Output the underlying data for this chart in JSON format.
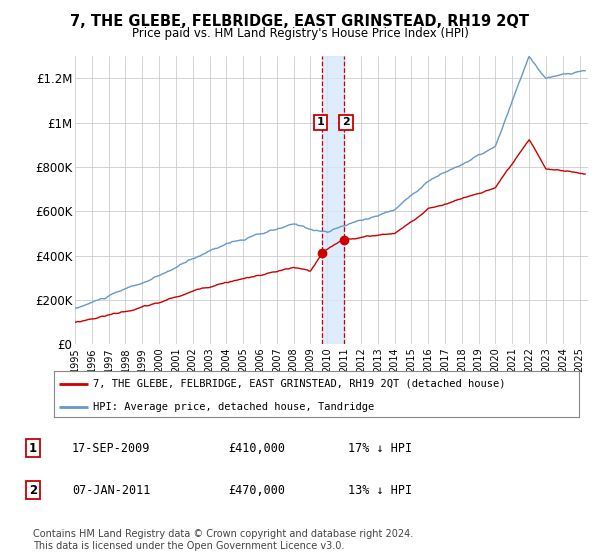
{
  "title": "7, THE GLEBE, FELBRIDGE, EAST GRINSTEAD, RH19 2QT",
  "subtitle": "Price paid vs. HM Land Registry's House Price Index (HPI)",
  "ylabel_ticks": [
    "£0",
    "£200K",
    "£400K",
    "£600K",
    "£800K",
    "£1M",
    "£1.2M"
  ],
  "ytick_values": [
    0,
    200000,
    400000,
    600000,
    800000,
    1000000,
    1200000
  ],
  "ylim": [
    0,
    1300000
  ],
  "xlim_start": 1995.0,
  "xlim_end": 2025.5,
  "transaction1": {
    "date_num": 2009.71,
    "price": 410000,
    "label": "1",
    "hpi_pct": "17% ↓ HPI",
    "date_str": "17-SEP-2009"
  },
  "transaction2": {
    "date_num": 2011.02,
    "price": 470000,
    "label": "2",
    "hpi_pct": "13% ↓ HPI",
    "date_str": "07-JAN-2011"
  },
  "legend_line1": "7, THE GLEBE, FELBRIDGE, EAST GRINSTEAD, RH19 2QT (detached house)",
  "legend_line2": "HPI: Average price, detached house, Tandridge",
  "footnote": "Contains HM Land Registry data © Crown copyright and database right 2024.\nThis data is licensed under the Open Government Licence v3.0.",
  "table_rows": [
    [
      "1",
      "17-SEP-2009",
      "£410,000",
      "17% ↓ HPI"
    ],
    [
      "2",
      "07-JAN-2011",
      "£470,000",
      "13% ↓ HPI"
    ]
  ],
  "hpi_color": "#6699cc",
  "price_color": "#cc0000",
  "marker_color": "#cc0000",
  "vline_color": "#cc0000",
  "vband_color": "#d6e8fa",
  "background_color": "#ffffff",
  "grid_color": "#cccccc"
}
